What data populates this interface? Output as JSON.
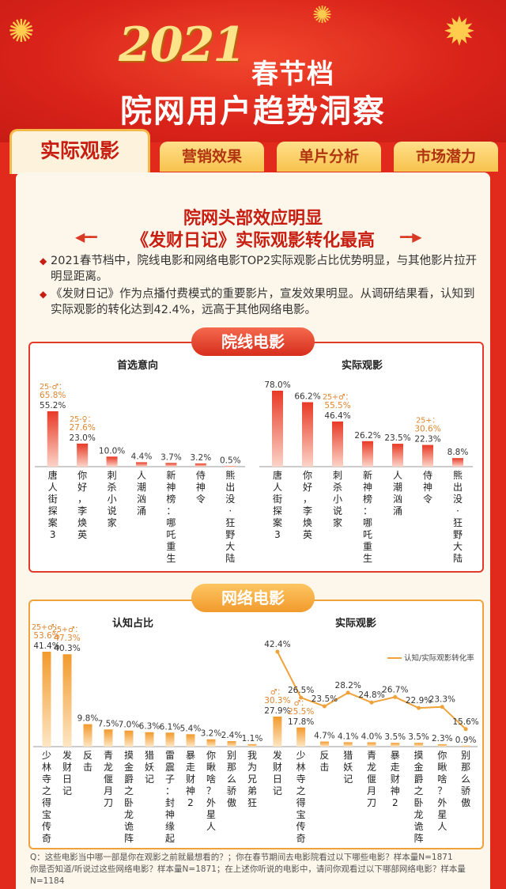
{
  "header": {
    "year": "2021",
    "title_line1": "春节档",
    "title_line2": "院网用户趋势洞察"
  },
  "tabs": [
    {
      "label": "实际观影",
      "active": true
    },
    {
      "label": "营销效果",
      "active": false
    },
    {
      "label": "单片分析",
      "active": false
    },
    {
      "label": "市场潜力",
      "active": false
    }
  ],
  "headline": {
    "line1": "院网头部效应明显",
    "line2": "《发财日记》实际观影转化最高"
  },
  "bullets": [
    "2021春节档中，院线电影和网络电影TOP2实际观影占比优势明显，与其他影片拉开明显距离。",
    "《发财日记》作为点播付费模式的重要影片，宣发效果明显。从调研结果看，认知到实际观影的转化达到42.4%，远高于其他网络电影。"
  ],
  "sections": {
    "cinema": "院线电影",
    "online": "网络电影"
  },
  "chart_data": [
    {
      "type": "bar",
      "title": "首选意向",
      "categories": [
        "唐人街探案3",
        "你好，李焕英",
        "刺杀小说家",
        "人潮汹涌",
        "新神榜：哪吒重生",
        "侍神令",
        "熊出没·狂野大陆"
      ],
      "values": [
        55.2,
        23.0,
        10.0,
        4.4,
        3.7,
        3.2,
        0.5
      ],
      "labels": [
        "55.2%",
        "23.0%",
        "10.0%",
        "4.4%",
        "3.7%",
        "3.2%",
        "0.5%"
      ],
      "annotations": [
        {
          "index": 0,
          "text": "25-♂：65.8%"
        },
        {
          "index": 1,
          "text": "25-♀：27.6%"
        }
      ]
    },
    {
      "type": "bar",
      "title": "实际观影",
      "categories": [
        "唐人街探案3",
        "你好，李焕英",
        "刺杀小说家",
        "新神榜：哪吒重生",
        "人潮汹涌",
        "侍神令",
        "熊出没·狂野大陆"
      ],
      "values": [
        78.0,
        66.2,
        46.4,
        26.2,
        23.5,
        22.3,
        8.8
      ],
      "labels": [
        "78.0%",
        "66.2%",
        "46.4%",
        "26.2%",
        "23.5%",
        "22.3%",
        "8.8%"
      ],
      "annotations": [
        {
          "index": 2,
          "text": "25+♂：55.5%"
        },
        {
          "index": 5,
          "text": "25+：30.6%"
        }
      ]
    },
    {
      "type": "bar",
      "title": "认知占比",
      "categories": [
        "少林寺之得宝传奇",
        "发财日记",
        "反击",
        "青龙偃月刀",
        "摸金爵之卧龙诡阵",
        "猎妖记",
        "雷震子：封神缘起",
        "暴走财神2",
        "你瞅啥？外星人",
        "别那么骄傲",
        "我为兄弟狂"
      ],
      "values": [
        41.4,
        40.3,
        9.8,
        7.5,
        7.0,
        6.3,
        6.1,
        5.4,
        3.2,
        2.4,
        1.1
      ],
      "labels": [
        "41.4%",
        "40.3%",
        "9.8%",
        "7.5%",
        "7.0%",
        "6.3%",
        "6.1%",
        "5.4%",
        "3.2%",
        "2.4%",
        "1.1%"
      ],
      "annotations": [
        {
          "index": 0,
          "text": "25+♂：53.6%"
        },
        {
          "index": 1,
          "text": "25+♂：47.3%"
        }
      ]
    },
    {
      "type": "bar+line",
      "title": "实际观影",
      "categories": [
        "发财日记",
        "少林寺之得宝传奇",
        "反击",
        "猎妖记",
        "青龙偃月刀",
        "暴走财神2",
        "摸金爵之卧龙诡阵",
        "你瞅啥？外星人",
        "别那么骄傲"
      ],
      "values": [
        27.9,
        17.8,
        4.7,
        4.1,
        4.0,
        3.5,
        3.5,
        2.3,
        0.9
      ],
      "labels": [
        "27.9%",
        "17.8%",
        "4.7%",
        "4.1%",
        "4.0%",
        "3.5%",
        "3.5%",
        "2.3%",
        "0.9%"
      ],
      "line": {
        "name": "认知/实际观影转化率",
        "values": [
          42.4,
          26.5,
          23.5,
          28.2,
          24.8,
          26.7,
          22.9,
          23.3,
          15.6
        ],
        "labels": [
          "42.4%",
          "26.5%",
          "23.5%",
          "28.2%",
          "24.8%",
          "26.7%",
          "22.9%",
          "23.3%",
          "15.6%"
        ]
      },
      "annotations": [
        {
          "index": 0,
          "text": "♂：30.3%"
        },
        {
          "index": 1,
          "text": "♂：25.5%"
        }
      ]
    }
  ],
  "footer": {
    "line1": "Q：这些电影当中哪一部是你在观影之前就最想看的？；你在春节期间去电影院看过以下哪些电影？样本量N=1871",
    "line2": "你是否知道/听说过这些网络电影？样本量N=1871；在上述你听说的电影中，请问你观看过以下哪部网络电影？样本量N=1184"
  },
  "colors": {
    "red": "#e23b2a",
    "orange": "#f0a23a",
    "annotation": "#e0852d"
  }
}
